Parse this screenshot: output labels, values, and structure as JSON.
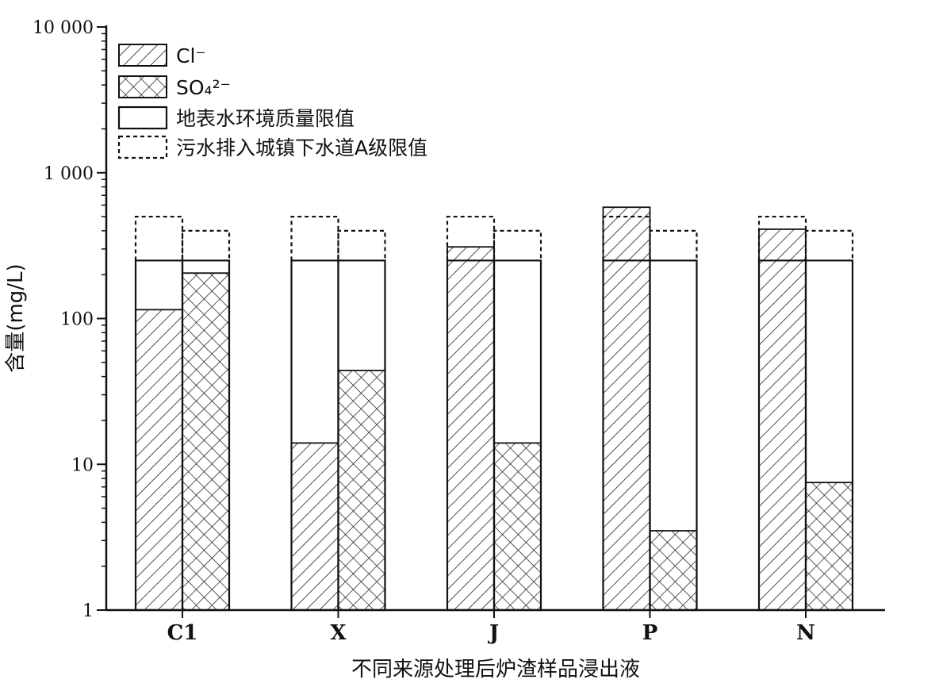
{
  "chart_data": {
    "type": "bar",
    "scale": "log",
    "ylim": [
      1,
      10000
    ],
    "ytick_labels": [
      "1",
      "10",
      "100",
      "1 000",
      "10 000"
    ],
    "ylabel": "含量(mg/L)",
    "xlabel": "不同来源处理后炉渣样品浸出液",
    "categories": [
      "C1",
      "X",
      "J",
      "P",
      "N"
    ],
    "series": [
      {
        "name": "Cl⁻",
        "values": [
          115,
          14,
          310,
          580,
          410
        ],
        "pattern": "diagonal-hatch"
      },
      {
        "name": "SO₄²⁻",
        "values": [
          205,
          44,
          14,
          3.5,
          7.5
        ],
        "pattern": "cross-hatch"
      }
    ],
    "limits": [
      {
        "name": "地表水环境质量限值",
        "style": "solid",
        "values": {
          "Cl⁻": 250,
          "SO₄²⁻": 250
        }
      },
      {
        "name": "污水排入城镇下水道A级限值",
        "style": "dashed",
        "values": {
          "Cl⁻": 500,
          "SO₄²⁻": 400
        }
      }
    ],
    "legend": {
      "position": "top-left",
      "items": [
        "Cl⁻",
        "SO₄²⁻",
        "地表水环境质量限值",
        "污水排入城镇下水道A级限值"
      ]
    },
    "grid": false
  }
}
